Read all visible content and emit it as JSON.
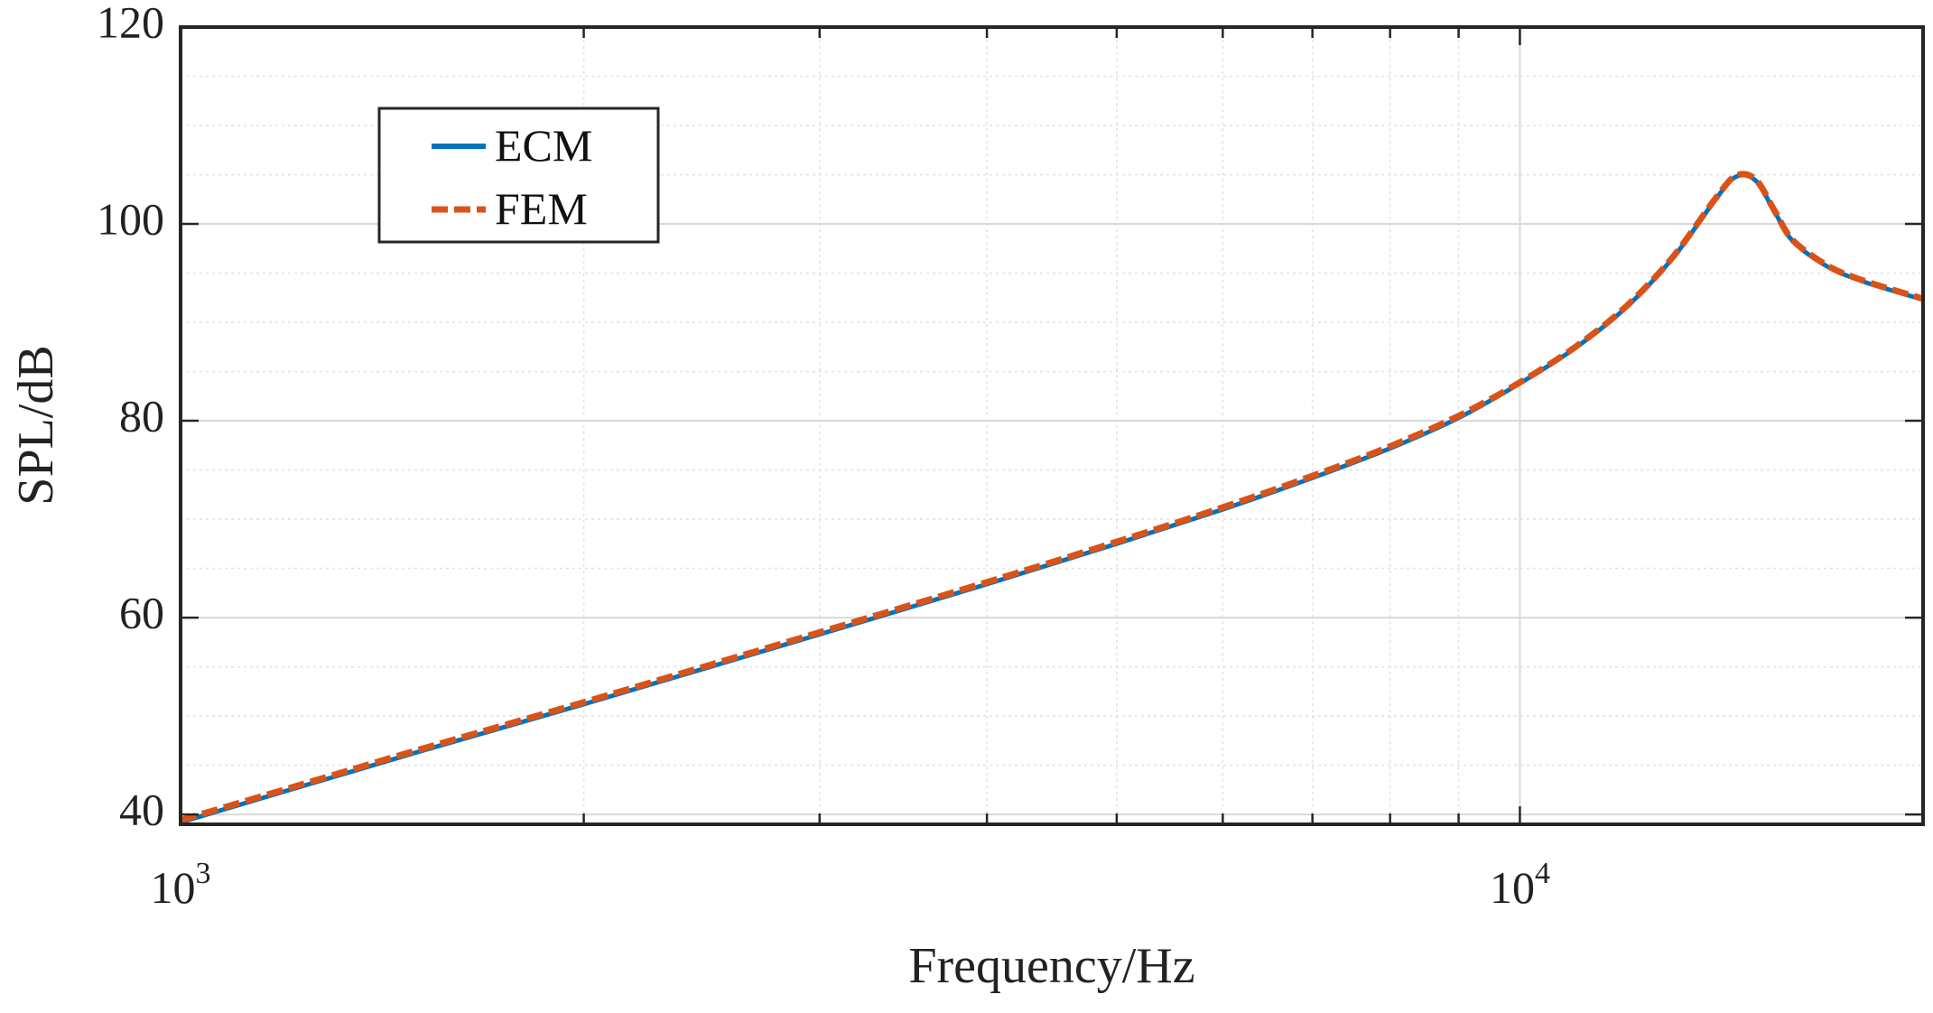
{
  "chart_data": {
    "type": "line",
    "title": "",
    "xlabel": "Frequency/Hz",
    "ylabel": "SPL/dB",
    "xscale": "log",
    "xlim": [
      1000,
      20000
    ],
    "ylim": [
      39,
      120
    ],
    "xticks": [
      {
        "value": 1000,
        "base": "10",
        "exp": "3"
      },
      {
        "value": 10000,
        "base": "10",
        "exp": "4"
      }
    ],
    "yticks": [
      40,
      60,
      80,
      100,
      120
    ],
    "ytick_labels": [
      "40",
      "60",
      "80",
      "100",
      "120"
    ],
    "grid": true,
    "minor_grid": true,
    "legend_position": "top-left",
    "series": [
      {
        "name": "ECM",
        "color": "#0072BD",
        "style": "solid",
        "x": [
          1000,
          1200,
          1500,
          2000,
          2500,
          3000,
          4000,
          5000,
          6000,
          7000,
          8000,
          9000,
          10000,
          11000,
          12000,
          13000,
          14000,
          14500,
          15000,
          15500,
          16000,
          17000,
          18000,
          19000,
          20000
        ],
        "y": [
          39.2,
          42.4,
          46.3,
          51.2,
          55.1,
          58.3,
          63.4,
          67.5,
          71.0,
          74.2,
          77.2,
          80.3,
          83.8,
          87.4,
          91.5,
          96.5,
          102.5,
          104.8,
          104.4,
          101.2,
          98.2,
          95.6,
          94.2,
          93.2,
          92.3
        ]
      },
      {
        "name": "FEM",
        "color": "#D95319",
        "style": "dashed",
        "x": [
          1000,
          1200,
          1500,
          2000,
          2500,
          3000,
          4000,
          5000,
          6000,
          7000,
          8000,
          9000,
          10000,
          11000,
          12000,
          13000,
          14000,
          14500,
          15000,
          15500,
          16000,
          17000,
          18000,
          19000,
          20000
        ],
        "y": [
          39.4,
          42.6,
          46.5,
          51.4,
          55.3,
          58.5,
          63.6,
          67.7,
          71.2,
          74.4,
          77.4,
          80.5,
          83.9,
          87.5,
          91.6,
          96.6,
          102.6,
          104.9,
          104.5,
          101.3,
          98.3,
          95.7,
          94.3,
          93.3,
          92.4
        ]
      }
    ]
  }
}
